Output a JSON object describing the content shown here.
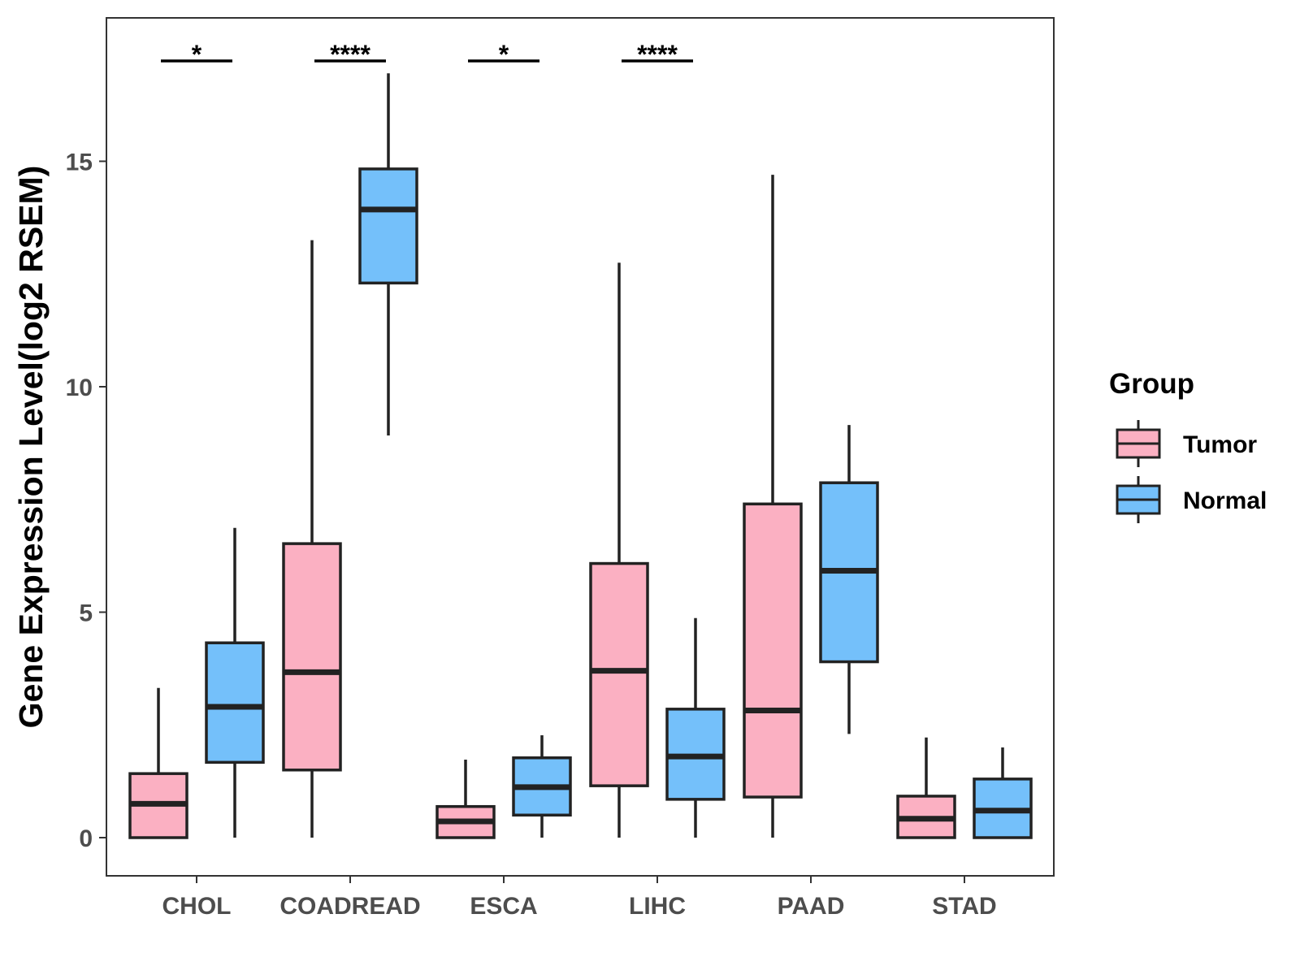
{
  "chart_data": {
    "type": "boxplot",
    "title": "",
    "xlabel": "",
    "ylabel": "Gene Expression Level(log2 RSEM)",
    "ylim": [
      -0.85,
      18.1
    ],
    "yticks": [
      0,
      5,
      10,
      15
    ],
    "grid": false,
    "legend_position": "right",
    "legend": {
      "title": "Group",
      "items": [
        {
          "name": "Tumor",
          "color": "#FBB0C2"
        },
        {
          "name": "Normal",
          "color": "#74C0FA"
        }
      ]
    },
    "categories": [
      "CHOL",
      "COADREAD",
      "ESCA",
      "LIHC",
      "PAAD",
      "STAD"
    ],
    "series": [
      {
        "name": "Tumor",
        "color": "#FBB0C2",
        "boxes": [
          {
            "low": 0,
            "q1": 0,
            "median": 0.75,
            "q3": 1.42,
            "high": 3.32
          },
          {
            "low": 0,
            "q1": 1.5,
            "median": 3.67,
            "q3": 6.52,
            "high": 13.25
          },
          {
            "low": 0,
            "q1": 0,
            "median": 0.36,
            "q3": 0.69,
            "high": 1.73
          },
          {
            "low": 0,
            "q1": 1.15,
            "median": 3.7,
            "q3": 6.08,
            "high": 12.75
          },
          {
            "low": 0,
            "q1": 0.9,
            "median": 2.82,
            "q3": 7.4,
            "high": 14.7
          },
          {
            "low": 0,
            "q1": 0,
            "median": 0.42,
            "q3": 0.92,
            "high": 2.22
          }
        ]
      },
      {
        "name": "Normal",
        "color": "#74C0FA",
        "boxes": [
          {
            "low": 0,
            "q1": 1.67,
            "median": 2.9,
            "q3": 4.32,
            "high": 6.87
          },
          {
            "low": 8.92,
            "q1": 12.3,
            "median": 13.93,
            "q3": 14.83,
            "high": 16.95
          },
          {
            "low": 0,
            "q1": 0.5,
            "median": 1.12,
            "q3": 1.77,
            "high": 2.27
          },
          {
            "low": 0,
            "q1": 0.85,
            "median": 1.8,
            "q3": 2.85,
            "high": 4.87
          },
          {
            "low": 2.3,
            "q1": 3.9,
            "median": 5.92,
            "q3": 7.87,
            "high": 9.15
          },
          {
            "low": 0,
            "q1": 0,
            "median": 0.6,
            "q3": 1.3,
            "high": 2.0
          }
        ]
      }
    ],
    "significance": [
      {
        "category": "CHOL",
        "label": "*"
      },
      {
        "category": "COADREAD",
        "label": "****"
      },
      {
        "category": "ESCA",
        "label": "*"
      },
      {
        "category": "LIHC",
        "label": "****"
      }
    ]
  }
}
